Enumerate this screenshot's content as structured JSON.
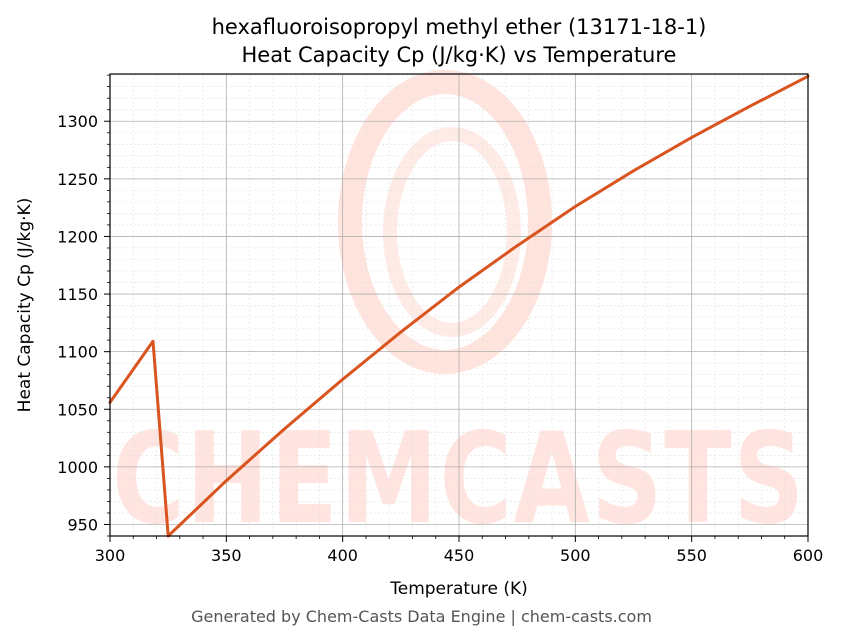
{
  "chart_data": {
    "type": "line",
    "title": [
      "hexafluoroisopropyl methyl ether (13171-18-1)",
      "Heat Capacity Cp (J/kg·K) vs Temperature"
    ],
    "xlabel": "Temperature (K)",
    "ylabel": "Heat Capacity Cp (J/kg·K)",
    "xlim": [
      300,
      600
    ],
    "ylim": [
      940,
      1341
    ],
    "xticks": [
      300,
      350,
      400,
      450,
      500,
      550,
      600
    ],
    "yticks": [
      950,
      1000,
      1050,
      1100,
      1150,
      1200,
      1250,
      1300
    ],
    "grid": true,
    "legend": "none",
    "series": [
      {
        "color": "#d9541e",
        "x": [
          300,
          318.5,
          325,
          350,
          375,
          400,
          425,
          450,
          475,
          500,
          525,
          550,
          575,
          600
        ],
        "y": [
          1056,
          1109,
          940,
          988,
          1033,
          1076,
          1117,
          1156,
          1192,
          1226,
          1257,
          1286,
          1313,
          1339
        ]
      }
    ]
  },
  "watermark": {
    "text": "CHEMCASTS",
    "color": "#ffdcd5"
  },
  "footer": "Generated by Chem-Casts Data Engine | chem-casts.com"
}
